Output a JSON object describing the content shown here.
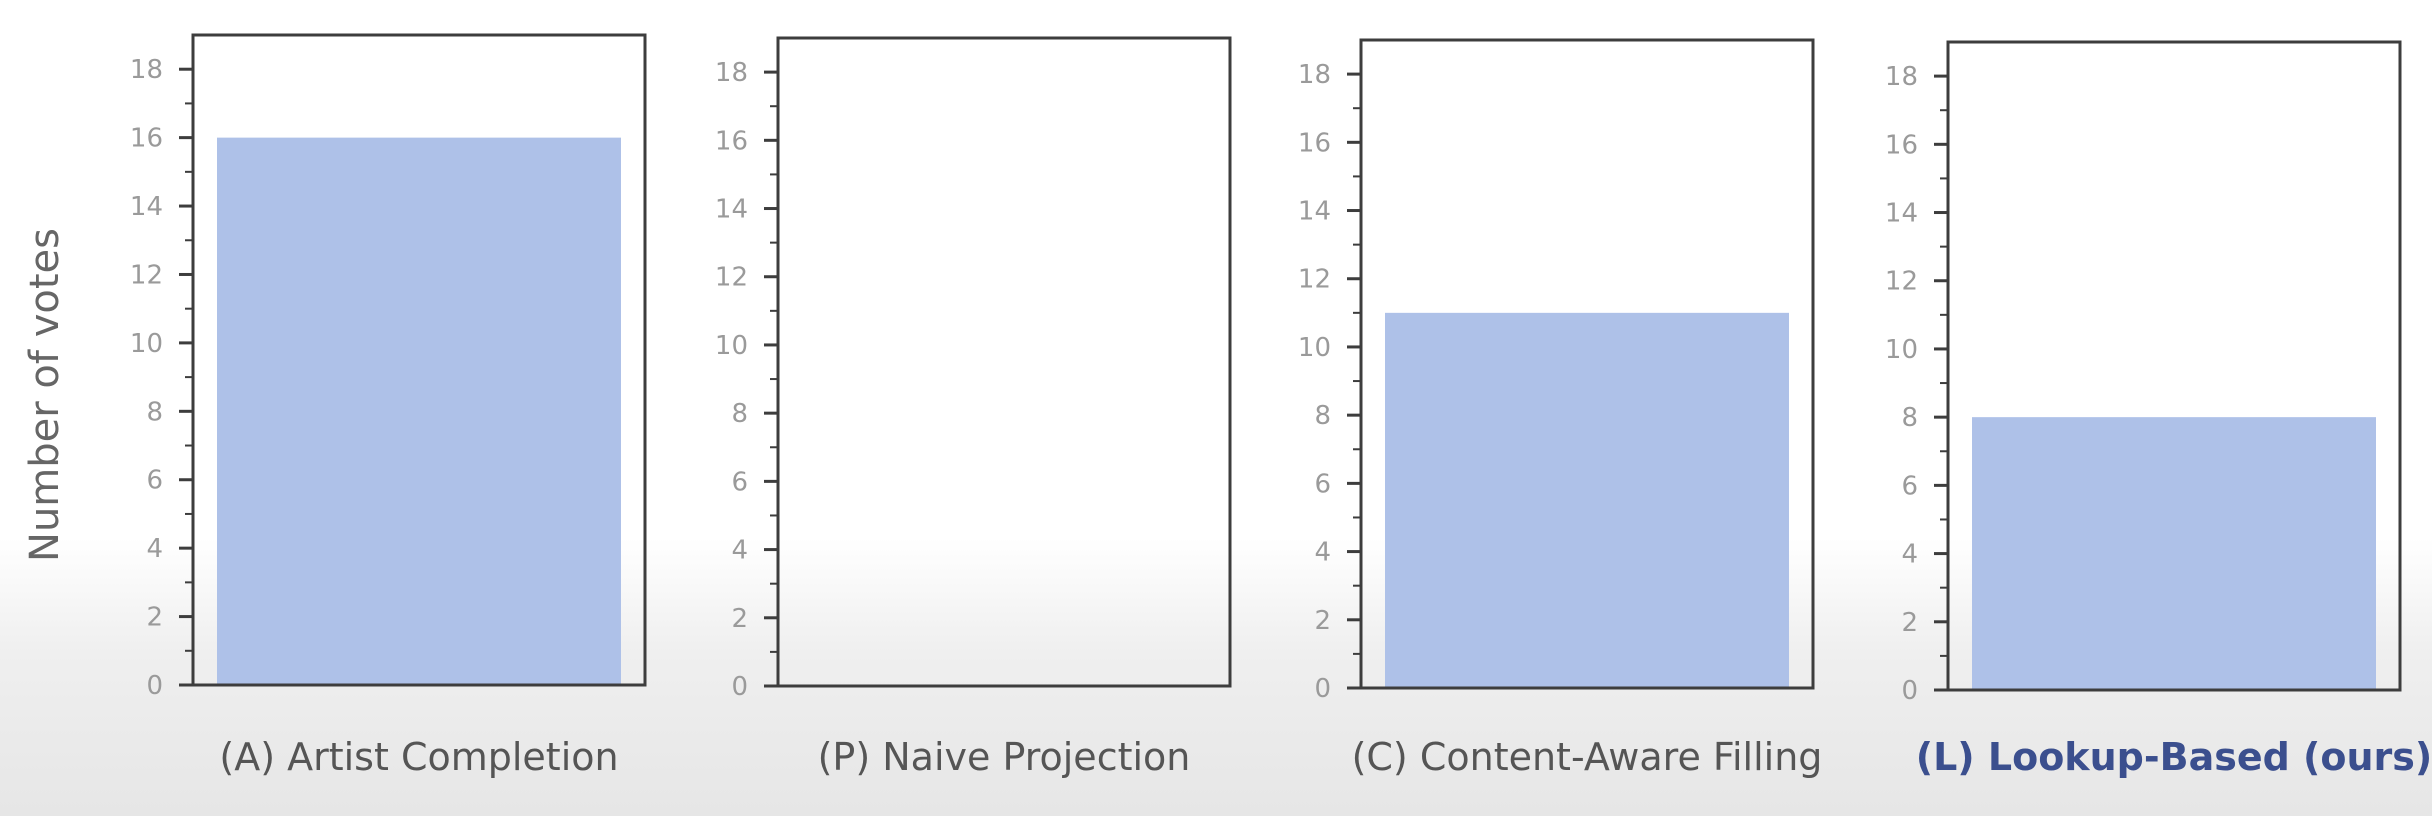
{
  "chart_data": {
    "type": "bar",
    "ylabel": "Number of votes",
    "ylim": [
      0,
      19
    ],
    "yticks": [
      "0",
      "2",
      "4",
      "6",
      "8",
      "10",
      "12",
      "14",
      "16",
      "18"
    ],
    "bar_color": "#aec1e8",
    "highlight_color": "#3b4f8e",
    "panels": [
      {
        "label": "(A) Artist Completion",
        "value": 16,
        "highlight": false
      },
      {
        "label": "(P) Naive Projection",
        "value": 0,
        "highlight": false
      },
      {
        "label": "(C) Content-Aware Filling",
        "value": 11,
        "highlight": false
      },
      {
        "label": "(L) Lookup-Based (ours)",
        "value": 8,
        "highlight": true
      }
    ]
  }
}
